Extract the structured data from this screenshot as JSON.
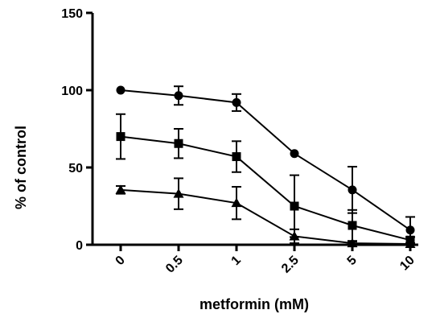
{
  "chart_data": {
    "type": "line",
    "title": "",
    "xlabel": "metformin (mM)",
    "ylabel": "% of control",
    "categories": [
      "0",
      "0.5",
      "1",
      "2.5",
      "5",
      "10"
    ],
    "ylim": [
      0,
      150
    ],
    "yticks": [
      0,
      50,
      100,
      150
    ],
    "grid": false,
    "legend": "none",
    "series": [
      {
        "marker": "circle",
        "values": [
          100,
          96.5,
          92,
          59,
          35.5,
          9.5
        ],
        "errors": [
          0,
          6,
          5.5,
          0,
          15,
          8.5
        ]
      },
      {
        "marker": "square",
        "values": [
          70,
          65.5,
          57,
          25,
          12.5,
          3
        ],
        "errors": [
          14.5,
          9.5,
          10,
          20,
          10,
          2
        ]
      },
      {
        "marker": "triangle",
        "values": [
          35.5,
          33,
          27,
          5.5,
          1,
          0.5
        ],
        "errors": [
          2.5,
          10,
          10.5,
          4.5,
          1,
          0.5
        ]
      }
    ]
  }
}
